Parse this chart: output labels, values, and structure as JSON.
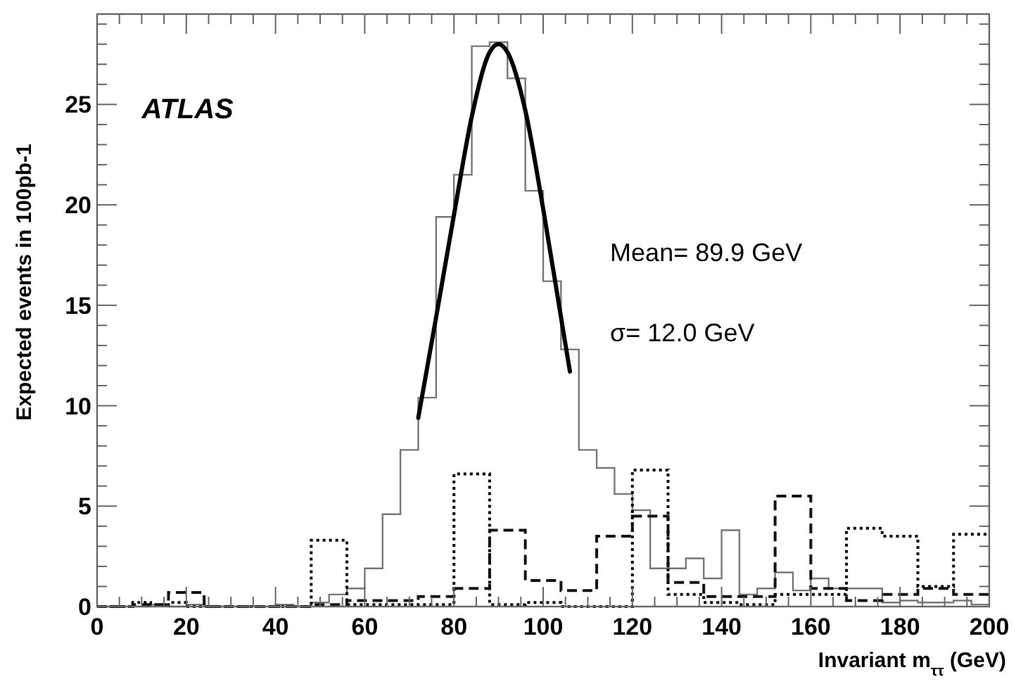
{
  "chart_data": {
    "type": "histogram",
    "xlabel": "Invariant m$_{ττ}$ (GeV)",
    "ylabel": "Expected events in 100pb-1",
    "annotations": [
      "ATLAS",
      "Mean= 89.9 GeV",
      "σ= 12.0 GeV"
    ],
    "bins": [
      0,
      4,
      8,
      12,
      16,
      20,
      24,
      28,
      32,
      36,
      40,
      44,
      48,
      52,
      56,
      60,
      64,
      68,
      72,
      76,
      80,
      84,
      88,
      92,
      96,
      100,
      104,
      108,
      112,
      116,
      120,
      124,
      128,
      132,
      136,
      140,
      144,
      148,
      152,
      156,
      160,
      164,
      168,
      172,
      176,
      180,
      184,
      188,
      192,
      196,
      200
    ],
    "series": [
      {
        "color": "#777777",
        "line_style": "solid",
        "values": [
          0,
          0,
          0,
          0.1,
          0,
          0.1,
          0,
          0,
          0,
          0,
          0.1,
          0,
          0.2,
          0.6,
          0.9,
          1.9,
          4.6,
          7.8,
          10.4,
          19.4,
          21.5,
          27.9,
          28.1,
          26.3,
          20.7,
          16.2,
          12.8,
          7.8,
          6.9,
          5.6,
          4.8,
          1.9,
          1.9,
          2.4,
          1.4,
          3.8,
          0.6,
          0.9,
          1.7,
          0.8,
          1.4,
          0.9,
          0.9,
          0.9,
          0.2,
          0.3,
          0.2,
          0.2,
          0.3,
          0.1
        ]
      },
      {
        "color": "#000000",
        "line_style": "dotted",
        "values": [
          0,
          0,
          0.2,
          0.1,
          0.2,
          0,
          0,
          0,
          0,
          0,
          0,
          0,
          3.3,
          3.3,
          0.1,
          0.1,
          0.1,
          0.1,
          0.1,
          0.1,
          6.6,
          6.6,
          0.1,
          0.1,
          0.2,
          0.2,
          0,
          0,
          0,
          0,
          6.8,
          6.8,
          0.6,
          0.6,
          0.2,
          0.2,
          0.1,
          0.1,
          0.6,
          0.6,
          0.6,
          0.6,
          3.9,
          3.9,
          3.5,
          3.5,
          1.0,
          1.0,
          3.6,
          3.6
        ]
      },
      {
        "color": "#111111",
        "line_style": "dashed",
        "values": [
          0,
          0,
          0.1,
          0.1,
          0.7,
          0.7,
          0,
          0,
          0,
          0,
          0,
          0,
          0.1,
          0.1,
          0.3,
          0.3,
          0.3,
          0.3,
          0.5,
          0.5,
          0.9,
          0.9,
          3.8,
          3.8,
          1.3,
          1.3,
          0.8,
          0.8,
          3.5,
          3.5,
          4.5,
          4.5,
          1.2,
          1.2,
          0.5,
          0.5,
          0.5,
          0.5,
          5.5,
          5.5,
          0.9,
          0.9,
          0.3,
          0.3,
          0.6,
          0.6,
          0.9,
          0.9,
          0.6,
          0.6
        ]
      },
      {
        "type": "line",
        "color": "#000000",
        "line_style": "solid",
        "x": [
          72,
          76,
          80,
          84,
          88,
          90,
          92,
          96,
          100,
          104,
          106
        ],
        "values": [
          9.4,
          14.4,
          19.5,
          24.4,
          27.6,
          28.0,
          27.6,
          24.7,
          19.8,
          14.4,
          11.7
        ]
      }
    ],
    "xlim": [
      0,
      200
    ],
    "xticks": [
      0,
      {
        "value": 5,
        "label": null
      },
      {
        "value": 10,
        "label": null
      },
      {
        "value": 15,
        "label": null
      },
      20,
      {
        "value": 25,
        "label": null
      },
      {
        "value": 30,
        "label": null
      },
      {
        "value": 35,
        "label": null
      },
      40,
      {
        "value": 45,
        "label": null
      },
      {
        "value": 50,
        "label": null
      },
      {
        "value": 55,
        "label": null
      },
      60,
      {
        "value": 65,
        "label": null
      },
      {
        "value": 70,
        "label": null
      },
      {
        "value": 75,
        "label": null
      },
      80,
      {
        "value": 85,
        "label": null
      },
      {
        "value": 90,
        "label": null
      },
      {
        "value": 95,
        "label": null
      },
      100,
      {
        "value": 105,
        "label": null
      },
      {
        "value": 110,
        "label": null
      },
      {
        "value": 115,
        "label": null
      },
      120,
      {
        "value": 125,
        "label": null
      },
      {
        "value": 130,
        "label": null
      },
      {
        "value": 135,
        "label": null
      },
      140,
      {
        "value": 145,
        "label": null
      },
      {
        "value": 150,
        "label": null
      },
      {
        "value": 155,
        "label": null
      },
      160,
      {
        "value": 165,
        "label": null
      },
      {
        "value": 170,
        "label": null
      },
      {
        "value": 175,
        "label": null
      },
      180,
      {
        "value": 185,
        "label": null
      },
      {
        "value": 190,
        "label": null
      },
      {
        "value": 195,
        "label": null
      },
      200
    ],
    "ylim": [
      0,
      29.5
    ],
    "yticks": [
      0,
      {
        "value": 1,
        "label": null
      },
      {
        "value": 2,
        "label": null
      },
      {
        "value": 3,
        "label": null
      },
      {
        "value": 4,
        "label": null
      },
      5,
      {
        "value": 6,
        "label": null
      },
      {
        "value": 7,
        "label": null
      },
      {
        "value": 8,
        "label": null
      },
      {
        "value": 9,
        "label": null
      },
      10,
      {
        "value": 11,
        "label": null
      },
      {
        "value": 12,
        "label": null
      },
      {
        "value": 13,
        "label": null
      },
      {
        "value": 14,
        "label": null
      },
      15,
      {
        "value": 16,
        "label": null
      },
      {
        "value": 17,
        "label": null
      },
      {
        "value": 18,
        "label": null
      },
      {
        "value": 19,
        "label": null
      },
      20,
      {
        "value": 21,
        "label": null
      },
      {
        "value": 22,
        "label": null
      },
      {
        "value": 23,
        "label": null
      },
      {
        "value": 24,
        "label": null
      },
      25,
      {
        "value": 26,
        "label": null
      },
      {
        "value": 27,
        "label": null
      },
      {
        "value": 28,
        "label": null
      },
      {
        "value": 29,
        "label": null
      }
    ],
    "grid": false
  }
}
